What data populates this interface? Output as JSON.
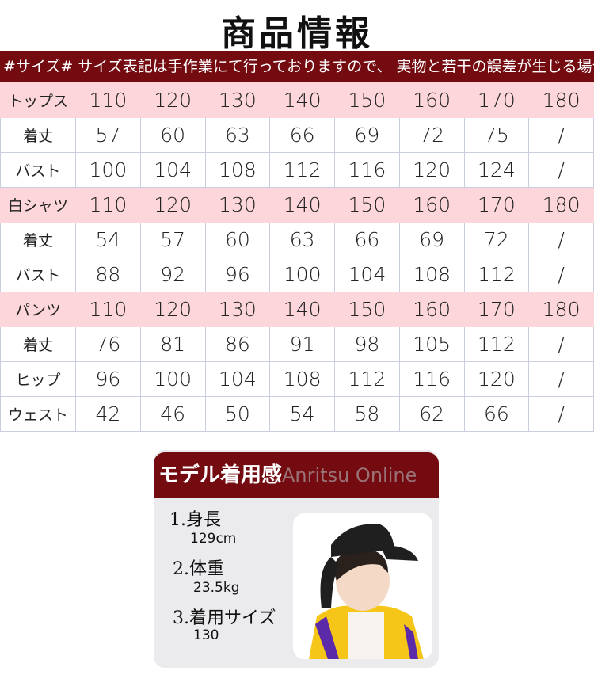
{
  "title": "商品情報",
  "notice": "#サイズ# サイズ表記は手作業にて行っておりますので、 実物と若干の誤差が生じる場合がありま す",
  "table": [
    {
      "type": "head",
      "label": "トップス",
      "values": [
        "110",
        "120",
        "130",
        "140",
        "150",
        "160",
        "170",
        "180"
      ]
    },
    {
      "type": "row",
      "label": "着丈",
      "values": [
        "57",
        "60",
        "63",
        "66",
        "69",
        "72",
        "75",
        "/"
      ]
    },
    {
      "type": "row",
      "label": "バスト",
      "values": [
        "100",
        "104",
        "108",
        "112",
        "116",
        "120",
        "124",
        "/"
      ]
    },
    {
      "type": "head",
      "label": "白シャツ",
      "values": [
        "110",
        "120",
        "130",
        "140",
        "150",
        "160",
        "170",
        "180"
      ]
    },
    {
      "type": "row",
      "label": "着丈",
      "values": [
        "54",
        "57",
        "60",
        "63",
        "66",
        "69",
        "72",
        "/"
      ]
    },
    {
      "type": "row",
      "label": "バスト",
      "values": [
        "88",
        "92",
        "96",
        "100",
        "104",
        "108",
        "112",
        "/"
      ]
    },
    {
      "type": "head",
      "label": "パンツ",
      "values": [
        "110",
        "120",
        "130",
        "140",
        "150",
        "160",
        "170",
        "180"
      ]
    },
    {
      "type": "row",
      "label": "着丈",
      "values": [
        "76",
        "81",
        "86",
        "91",
        "98",
        "105",
        "112",
        "/"
      ]
    },
    {
      "type": "row",
      "label": "ヒップ",
      "values": [
        "96",
        "100",
        "104",
        "108",
        "112",
        "116",
        "120",
        "/"
      ]
    },
    {
      "type": "row",
      "label": "ウェスト",
      "values": [
        "42",
        "46",
        "50",
        "54",
        "58",
        "62",
        "66",
        "/"
      ]
    }
  ],
  "model": {
    "heading": "モデル着用感",
    "watermark": "Anritsu Online",
    "items": [
      {
        "label": "1.身長",
        "value": "129cm"
      },
      {
        "label": "2.体重",
        "value": "23.5kg"
      },
      {
        "label": "3.着用サイズ",
        "value": "130"
      }
    ]
  },
  "colors": {
    "header": "#730b10",
    "pink": "#fcd6db"
  }
}
